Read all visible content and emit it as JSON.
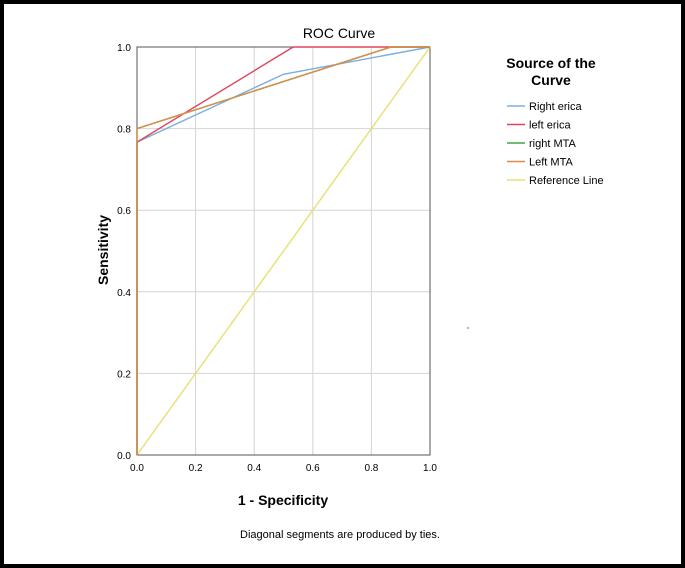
{
  "chart_data": {
    "type": "line",
    "title": "ROC Curve",
    "xlabel": "1 - Specificity",
    "ylabel": "Sensitivity",
    "xlim": [
      0,
      1
    ],
    "ylim": [
      0,
      1
    ],
    "x_ticks": [
      "0.0",
      "0.2",
      "0.4",
      "0.6",
      "0.8",
      "1.0"
    ],
    "y_ticks": [
      "0.0",
      "0.2",
      "0.4",
      "0.6",
      "0.8",
      "1.0"
    ],
    "grid": true,
    "legend_title": "Source of the Curve",
    "legend_position": "right",
    "footnote": "Diagonal segments are produced by ties.",
    "series": [
      {
        "name": "Right erica",
        "color": "#7aaee0",
        "points": [
          [
            0,
            0
          ],
          [
            0,
            0.767
          ],
          [
            0.5,
            0.933
          ],
          [
            1,
            1
          ]
        ]
      },
      {
        "name": "left erica",
        "color": "#e0455a",
        "points": [
          [
            0,
            0
          ],
          [
            0,
            0.767
          ],
          [
            0.533,
            1
          ],
          [
            1,
            1
          ]
        ]
      },
      {
        "name": "right MTA",
        "color": "#3ea83e",
        "points": [
          [
            0,
            0
          ],
          [
            0,
            0.8
          ],
          [
            0.867,
            1
          ],
          [
            1,
            1
          ]
        ]
      },
      {
        "name": "Left MTA",
        "color": "#e08a4a",
        "points": [
          [
            0,
            0
          ],
          [
            0,
            0.8
          ],
          [
            0.867,
            1
          ],
          [
            1,
            1
          ]
        ]
      },
      {
        "name": "Reference Line",
        "color": "#e8e070",
        "points": [
          [
            0,
            0
          ],
          [
            1,
            1
          ]
        ]
      }
    ]
  }
}
